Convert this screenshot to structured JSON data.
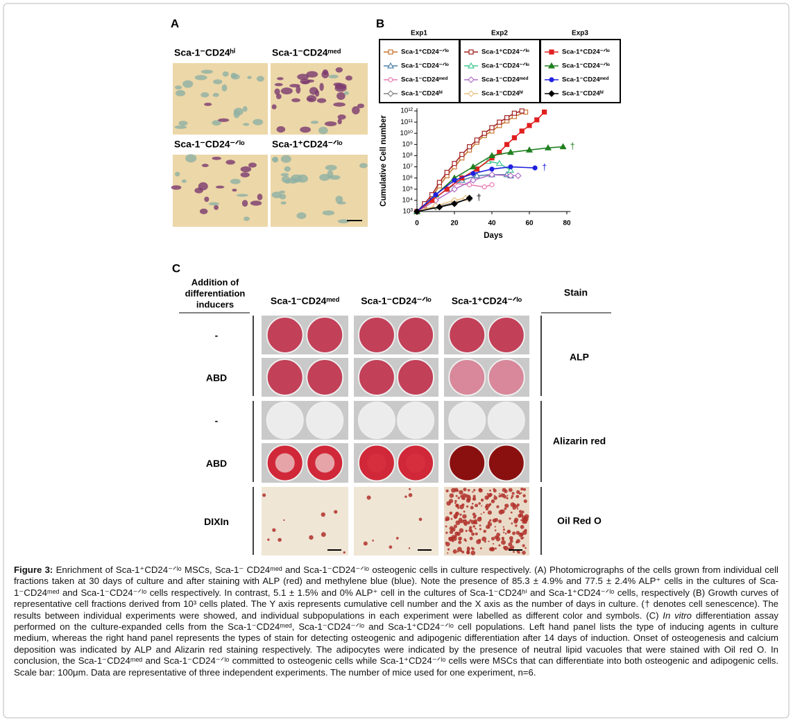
{
  "panel_labels": [
    "A",
    "B",
    "C"
  ],
  "panel_a": {
    "captions": [
      "Sca-1⁻CD24ʰⁱ",
      "Sca-1⁻CD24ᵐᵉᵈ",
      "Sca-1⁻CD24⁻ᐟˡᵒ",
      "Sca-1⁺CD24⁻ᐟˡᵒ"
    ]
  },
  "chart_data": {
    "type": "line",
    "xlabel": "Days",
    "ylabel": "Cumulative Cell number",
    "xlim": [
      0,
      82
    ],
    "xticks": [
      0,
      20,
      40,
      60,
      80
    ],
    "ylim": [
      1000,
      1000000000000.0
    ],
    "log_y": true,
    "yticks": [
      {
        "value": 1000,
        "label": "10³"
      },
      {
        "value": 10000.0,
        "label": "10⁴"
      },
      {
        "value": 100000.0,
        "label": "10⁵"
      },
      {
        "value": 1000000.0,
        "label": "10⁶"
      },
      {
        "value": 10000000.0,
        "label": "10⁷"
      },
      {
        "value": 100000000.0,
        "label": "10⁸"
      },
      {
        "value": 1000000000.0,
        "label": "10⁹"
      },
      {
        "value": 10000000000.0,
        "label": "10¹⁰"
      },
      {
        "value": 100000000000.0,
        "label": "10¹¹"
      },
      {
        "value": 1000000000000.0,
        "label": "10¹²"
      }
    ],
    "legend_titles": [
      "Exp1",
      "Exp2",
      "Exp3"
    ],
    "series": [
      {
        "name": "Sca-1⁺CD24⁻ᐟˡᵒ",
        "color": "#c8742e",
        "marker": "square",
        "filled": false,
        "x": [
          0,
          4,
          8,
          12,
          16,
          20,
          24,
          28,
          32,
          36,
          40,
          44,
          48,
          52,
          58
        ],
        "values": [
          1000,
          3200.0,
          20000.0,
          200000.0,
          1600000.0,
          10000000.0,
          63000000.0,
          320000000.0,
          1600000000.0,
          6300000000.0,
          16000000000.0,
          50000000000.0,
          130000000000.0,
          320000000000.0,
          800000000000.0
        ]
      },
      {
        "name": "Sca-1⁻CD24⁻ᐟˡᵒ",
        "color": "#4a7fa8",
        "marker": "triangle",
        "filled": false,
        "x": [
          0,
          8,
          16,
          24,
          32,
          40,
          48,
          50
        ],
        "values": [
          1000,
          10000.0,
          100000.0,
          630000.0,
          1600000.0,
          2000000.0,
          2000000.0,
          1600000.0
        ]
      },
      {
        "name": "Sca-1⁻CD24ᵐᵉᵈ",
        "color": "#e87ab0",
        "marker": "circle",
        "filled": false,
        "x": [
          0,
          8,
          16,
          20,
          28,
          36,
          40
        ],
        "values": [
          1000,
          10000.0,
          100000.0,
          320000.0,
          250000.0,
          160000.0,
          250000.0
        ]
      },
      {
        "name": "Sca-1⁻CD24ʰⁱ",
        "color": "#808080",
        "marker": "diamond",
        "filled": false,
        "x": [
          0,
          10,
          20,
          28
        ],
        "values": [
          1000,
          2500.0,
          6300.0,
          13000.0
        ]
      },
      {
        "name": "Sca-1⁺CD24⁻ᐟˡᵒ",
        "color": "#a02020",
        "marker": "square",
        "filled": false,
        "x": [
          0,
          4,
          8,
          12,
          16,
          20,
          24,
          28,
          32,
          36,
          40,
          44,
          48,
          52,
          56
        ],
        "values": [
          1000,
          5000.0,
          32000.0,
          400000.0,
          3200000.0,
          20000000.0,
          130000000.0,
          630000000.0,
          2500000000.0,
          10000000000.0,
          32000000000.0,
          100000000000.0,
          250000000000.0,
          630000000000.0,
          1000000000000.0
        ]
      },
      {
        "name": "Sca-1⁻CD24⁻ᐟˡᵒ",
        "color": "#40c890",
        "marker": "triangle",
        "filled": false,
        "x": [
          0,
          8,
          16,
          24,
          32,
          38,
          44,
          50
        ],
        "values": [
          1000,
          10000.0,
          100000.0,
          1000000.0,
          6300000.0,
          32000000.0,
          20000000.0,
          5000000.0
        ]
      },
      {
        "name": "Sca-1⁻CD24ᵐᵉᵈ",
        "color": "#b070c8",
        "marker": "diamond",
        "filled": false,
        "x": [
          0,
          10,
          20,
          30,
          40,
          50,
          54
        ],
        "values": [
          1000,
          10000.0,
          100000.0,
          630000.0,
          2000000.0,
          1600000.0,
          1600000.0
        ]
      },
      {
        "name": "Sca-1⁻CD24ʰⁱ",
        "color": "#e8c080",
        "marker": "diamond",
        "filled": false,
        "x": [
          0,
          10,
          20,
          26
        ],
        "values": [
          1000,
          3200.0,
          10000.0,
          16000.0
        ]
      },
      {
        "name": "Sca-1⁺CD24⁻ᐟˡᵒ",
        "color": "#e02020",
        "marker": "square",
        "filled": true,
        "x": [
          0,
          8,
          16,
          24,
          32,
          40,
          44,
          48,
          52,
          56,
          60,
          64,
          68
        ],
        "values": [
          1000,
          10000.0,
          100000.0,
          1000000.0,
          6300000.0,
          63000000.0,
          200000000.0,
          1000000000.0,
          4000000000.0,
          16000000000.0,
          50000000000.0,
          160000000000.0,
          800000000000.0
        ]
      },
      {
        "name": "Sca-1⁻CD24⁻ᐟˡᵒ",
        "color": "#208020",
        "marker": "triangle",
        "filled": true,
        "x": [
          0,
          10,
          20,
          30,
          40,
          50,
          60,
          70,
          78
        ],
        "values": [
          1000,
          32000.0,
          1000000.0,
          10000000.0,
          100000000.0,
          200000000.0,
          320000000.0,
          500000000.0,
          630000000.0
        ],
        "end_label": "†"
      },
      {
        "name": "Sca-1⁻CD24ᵐᵉᵈ",
        "color": "#2020e0",
        "marker": "circle",
        "filled": true,
        "x": [
          0,
          10,
          20,
          30,
          40,
          50,
          63
        ],
        "values": [
          1000,
          32000.0,
          630000.0,
          2500000.0,
          6300000.0,
          10000000.0,
          8000000.0
        ],
        "end_label": "†"
      },
      {
        "name": "Sca-1⁻CD24ʰⁱ",
        "color": "#000000",
        "marker": "diamond",
        "filled": true,
        "x": [
          0,
          12,
          20,
          28
        ],
        "values": [
          1000,
          2500.0,
          5000.0,
          16000.0
        ],
        "end_label": "†"
      }
    ]
  },
  "panel_c": {
    "left_header": [
      "Addition of",
      "differentiation",
      "inducers"
    ],
    "columns": [
      "Sca-1⁻CD24ᵐᵉᵈ",
      "Sca-1⁻CD24⁻ᐟˡᵒ",
      "Sca-1⁺CD24⁻ᐟˡᵒ"
    ],
    "right_header": "Stain",
    "rows": [
      "-",
      "ABD",
      "-",
      "ABD",
      "DIXIn"
    ],
    "stains": [
      "ALP",
      "Alizarin red",
      "Oil Red O"
    ]
  },
  "caption": {
    "label": "Figure 3:",
    "text": " Enrichment of Sca-1⁺CD24⁻ᐟˡᵒ MSCs, Sca-1⁻ CD24ᵐᵉᵈ and Sca-1⁻CD24⁻ᐟˡᵒ osteogenic cells in culture respectively. (A) Photomicrographs of the cells grown from individual cell fractions taken at 30 days of culture and after staining with ALP (red) and methylene blue (blue). Note the presence of 85.3 ± 4.9% and 77.5 ± 2.4% ALP⁺ cells in the cultures of Sca-1⁻CD24ᵐᵉᵈ and Sca-1⁻CD24⁻ᐟˡᵒ cells respectively. In contrast, 5.1 ± 1.5% and 0% ALP⁺ cell in the cultures of Sca-1⁻CD24ʰⁱ and Sca-1⁺CD24⁻ᐟˡᵒ cells, respectively (B) Growth curves of representative cell fractions derived from 10³ cells plated. The Y axis represents cumulative cell number and the X axis as the number of days in culture. († denotes cell senescence). The results between individual experiments were showed, and individual subpopulations in each experiment were labelled as different color and symbols. (C) ",
    "italic": "In vitro",
    "text_after": " differentiation assay performed on the culture-expanded cells from the Sca-1⁻CD24ᵐᵉᵈ, Sca-1⁻CD24⁻ᐟˡᵒ and Sca-1⁺CD24⁻ᐟˡᵒ cell populations. Left hand panel lists the type of inducing agents in culture medium, whereas the right hand panel represents the types of stain for detecting osteogenic and adipogenic differentiation after 14 days of induction. Onset of osteogenesis and calcium deposition was indicated by ALP and Alizarin red staining respectively. The adipocytes were indicated by the presence of neutral lipid vacuoles that were stained with Oil red O. In conclusion, the Sca-1⁻CD24ᵐᵉᵈ and Sca-1⁻CD24⁻ᐟˡᵒ committed to osteogenic cells while Sca-1⁺CD24⁻ᐟˡᵒ cells were MSCs that can differentiate into both osteogenic and adipogenic cells. Scale bar: 100μm. Data are representative of three independent experiments. The number of mice used for one experiment, n=6."
  }
}
